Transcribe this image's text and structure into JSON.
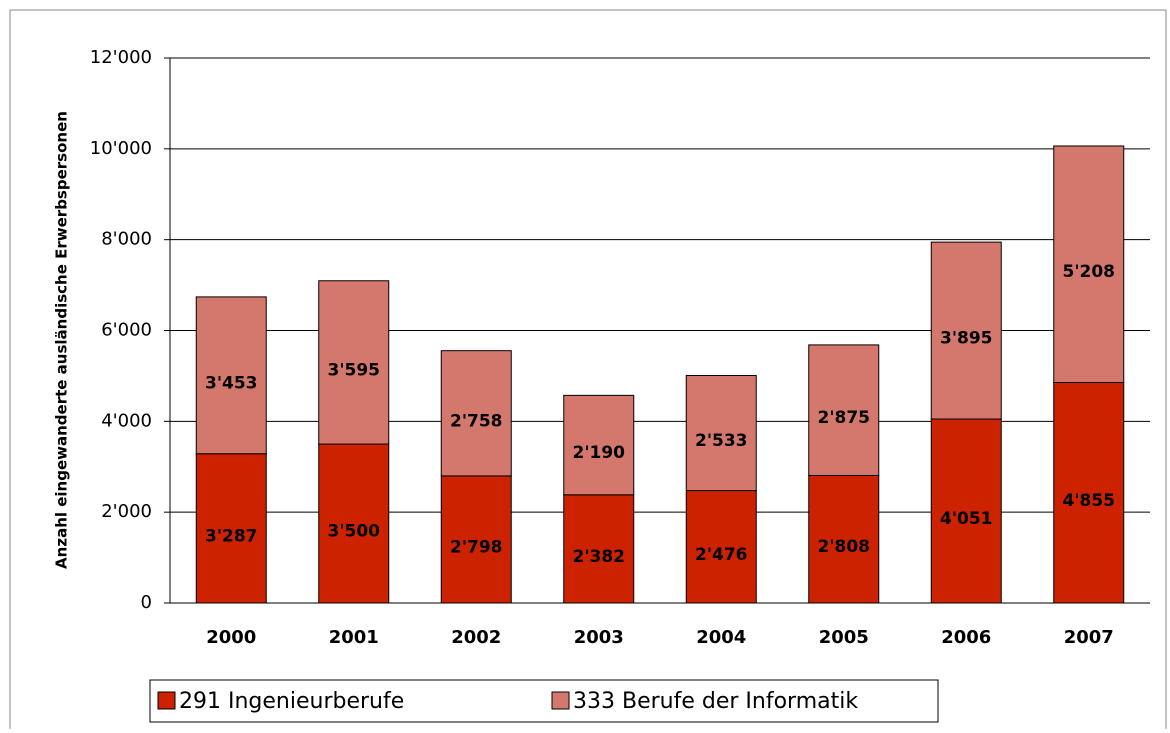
{
  "chart_data": {
    "type": "stacked_bar",
    "y_axis_label": "Anzahl eingewanderte ausländische Erwerbspersonen",
    "categories": [
      "2000",
      "2001",
      "2002",
      "2003",
      "2004",
      "2005",
      "2006",
      "2007"
    ],
    "series": [
      {
        "name": "291 Ingenieurberufe",
        "color": "#cc2200",
        "values": [
          3287,
          3500,
          2798,
          2382,
          2476,
          2808,
          4051,
          4855
        ],
        "value_labels": [
          "3'287",
          "3'500",
          "2'798",
          "2'382",
          "2'476",
          "2'808",
          "4'051",
          "4'855"
        ]
      },
      {
        "name": "333 Berufe der Informatik",
        "color": "#d4786e",
        "values": [
          3453,
          3595,
          2758,
          2190,
          2533,
          2875,
          3895,
          5208
        ],
        "value_labels": [
          "3'453",
          "3'595",
          "2'758",
          "2'190",
          "2'533",
          "2'875",
          "3'895",
          "5'208"
        ]
      }
    ],
    "ylim": [
      0,
      12000
    ],
    "yticks": [
      0,
      {
        "value": 2000,
        "label": "2'000"
      },
      {
        "value": 4000,
        "label": "4'000"
      },
      {
        "value": 6000,
        "label": "6'000"
      },
      {
        "value": 8000,
        "label": "8'000"
      },
      {
        "value": 10000,
        "label": "10'000"
      },
      {
        "value": 12000,
        "label": "12'000"
      }
    ],
    "grid": true,
    "legend": "bottom"
  }
}
